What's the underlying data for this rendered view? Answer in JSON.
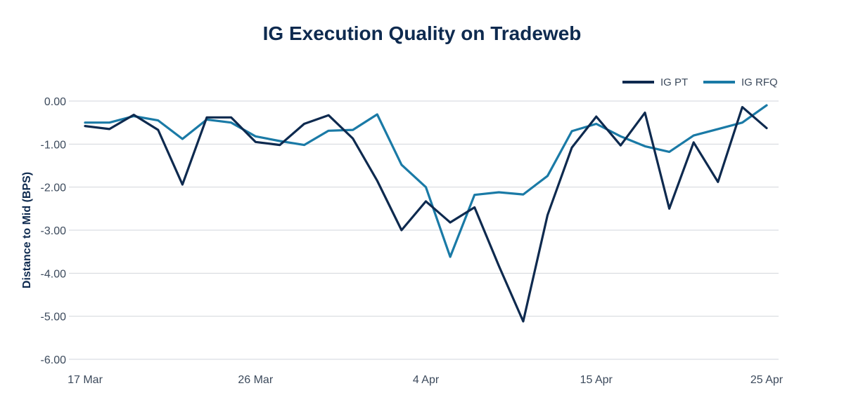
{
  "chart_data": {
    "type": "line",
    "title": "IG Execution Quality on Tradeweb",
    "ylabel": "Distance to Mid (BPS)",
    "xlabel": "",
    "ylim": [
      -6,
      0
    ],
    "yticks": [
      0,
      -1,
      -2,
      -3,
      -4,
      -5,
      -6
    ],
    "ytick_labels": [
      "0.00",
      "-1.00",
      "-2.00",
      "-3.00",
      "-4.00",
      "-5.00",
      "-6.00"
    ],
    "grid": "horizontal",
    "legend_position": "top-right",
    "x_ticks": [
      {
        "index": 0,
        "label": "17 Mar"
      },
      {
        "index": 7,
        "label": "26 Mar"
      },
      {
        "index": 14,
        "label": "4 Apr"
      },
      {
        "index": 21,
        "label": "15 Apr"
      },
      {
        "index": 28,
        "label": "25 Apr"
      }
    ],
    "series": [
      {
        "name": "IG PT",
        "color": "#0e2a4f",
        "values": [
          -0.58,
          -0.65,
          -0.32,
          -0.67,
          -1.94,
          -0.38,
          -0.38,
          -0.95,
          -1.02,
          -0.53,
          -0.33,
          -0.87,
          -1.85,
          -3.0,
          -2.33,
          -2.82,
          -2.47,
          -3.83,
          -5.12,
          -2.65,
          -1.08,
          -0.36,
          -1.03,
          -0.27,
          -2.5,
          -0.96,
          -1.88,
          -0.14,
          -0.63
        ]
      },
      {
        "name": "IG RFQ",
        "color": "#1a7aa6",
        "values": [
          -0.5,
          -0.5,
          -0.35,
          -0.45,
          -0.88,
          -0.43,
          -0.5,
          -0.82,
          -0.93,
          -1.02,
          -0.69,
          -0.67,
          -0.31,
          -1.48,
          -2.0,
          -3.62,
          -2.18,
          -2.12,
          -2.17,
          -1.74,
          -0.7,
          -0.53,
          -0.82,
          -1.05,
          -1.18,
          -0.8,
          -0.65,
          -0.5,
          -0.1
        ]
      }
    ]
  }
}
